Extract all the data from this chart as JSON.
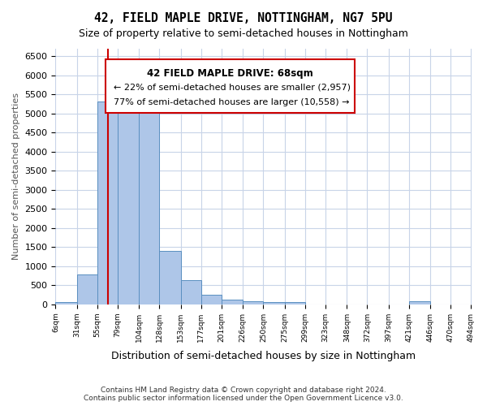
{
  "title": "42, FIELD MAPLE DRIVE, NOTTINGHAM, NG7 5PU",
  "subtitle": "Size of property relative to semi-detached houses in Nottingham",
  "xlabel": "Distribution of semi-detached houses by size in Nottingham",
  "ylabel": "Number of semi-detached properties",
  "footer_line1": "Contains HM Land Registry data © Crown copyright and database right 2024.",
  "footer_line2": "Contains public sector information licensed under the Open Government Licence v3.0.",
  "annotation_title": "42 FIELD MAPLE DRIVE: 68sqm",
  "annotation_line1": "← 22% of semi-detached houses are smaller (2,957)",
  "annotation_line2": "77% of semi-detached houses are larger (10,558) →",
  "property_size": 68,
  "bar_color": "#aec6e8",
  "bar_edge_color": "#5a8fc0",
  "vline_color": "#cc0000",
  "annotation_box_color": "#cc0000",
  "background_color": "#ffffff",
  "grid_color": "#c8d4e8",
  "bin_edges": [
    6,
    31,
    55,
    79,
    104,
    128,
    153,
    177,
    201,
    226,
    250,
    275,
    299,
    323,
    348,
    372,
    397,
    421,
    446,
    470,
    494
  ],
  "bar_heights": [
    50,
    790,
    5310,
    5280,
    5210,
    1410,
    630,
    250,
    130,
    80,
    70,
    70,
    5,
    5,
    5,
    5,
    5,
    80,
    5,
    5
  ],
  "ylim": [
    0,
    6700
  ],
  "yticks": [
    0,
    500,
    1000,
    1500,
    2000,
    2500,
    3000,
    3500,
    4000,
    4500,
    5000,
    5500,
    6000,
    6500
  ]
}
